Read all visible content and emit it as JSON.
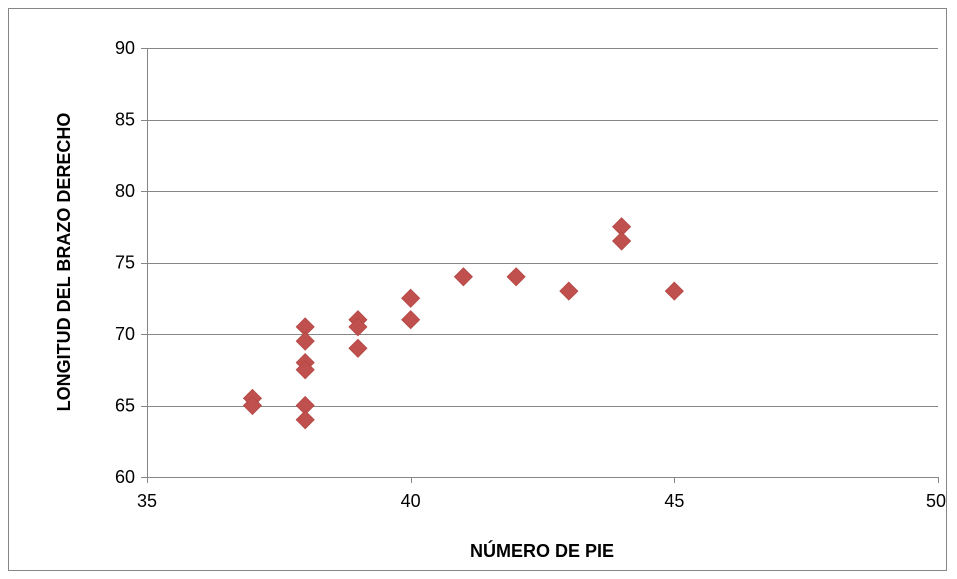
{
  "chart_data": {
    "type": "scatter",
    "title": "",
    "xlabel": "NÚMERO DE PIE",
    "ylabel": "LONGITUD DEL BRAZO DERECHO",
    "xlim": [
      35,
      50
    ],
    "ylim": [
      60,
      90
    ],
    "xticks": [
      35,
      40,
      45,
      50
    ],
    "yticks": [
      60,
      65,
      70,
      75,
      80,
      85,
      90
    ],
    "grid": "horizontal",
    "legend": "none",
    "marker_color": "#c0504d",
    "marker_shape": "diamond",
    "points": [
      {
        "x": 37,
        "y": 65.5
      },
      {
        "x": 37,
        "y": 65
      },
      {
        "x": 38,
        "y": 70.5
      },
      {
        "x": 38,
        "y": 69.5
      },
      {
        "x": 38,
        "y": 68
      },
      {
        "x": 38,
        "y": 67.5
      },
      {
        "x": 38,
        "y": 65
      },
      {
        "x": 38,
        "y": 64
      },
      {
        "x": 39,
        "y": 71
      },
      {
        "x": 39,
        "y": 70.5
      },
      {
        "x": 39,
        "y": 69
      },
      {
        "x": 40,
        "y": 72.5
      },
      {
        "x": 40,
        "y": 71
      },
      {
        "x": 41,
        "y": 74
      },
      {
        "x": 42,
        "y": 74
      },
      {
        "x": 43,
        "y": 73
      },
      {
        "x": 44,
        "y": 77.5
      },
      {
        "x": 44,
        "y": 76.5
      },
      {
        "x": 45,
        "y": 73
      }
    ]
  }
}
